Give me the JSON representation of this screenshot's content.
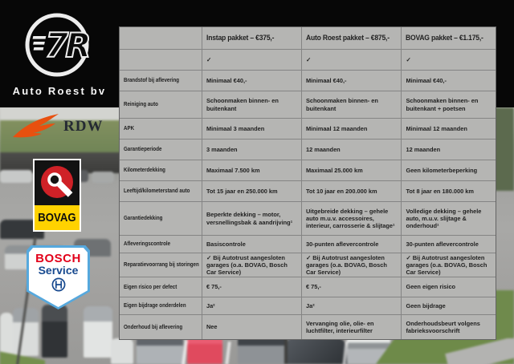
{
  "brand": {
    "name": "Auto Roest bv"
  },
  "logos": {
    "monogram": "7R",
    "rdw": "RDW",
    "bovag": "BOVAG",
    "bosch": "BOSCH",
    "bosch_service": "Service",
    "auto_roest_icon": "circle-7R-monogram",
    "rdw_icon": "orange-wing",
    "bovag_icon": "red-wheel-emblem",
    "bosch_icon": "armature-in-circle"
  },
  "colors": {
    "table_bg": "#b5b5b3",
    "rdw_orange": "#e8500f",
    "bovag_red": "#cf2127",
    "bovag_yellow": "#ffd200",
    "bosch_red": "#e2001a",
    "bosch_blue": "#17498f",
    "bosch_frame": "#56a8dd"
  },
  "table": {
    "check_symbol": "✓",
    "headers": [
      "",
      "Instap pakket – €375,-",
      "Auto Roest pakket – €875,-",
      "BOVAG pakket – €1.175,-"
    ],
    "rows": [
      {
        "label": "",
        "cells": [
          "✓",
          "✓",
          "✓"
        ]
      },
      {
        "label": "Brandstof bij aflevering",
        "cells": [
          "Minimaal €40,-",
          "Minimaal €40,-",
          "Minimaal €40,-"
        ]
      },
      {
        "label": "Reiniging auto",
        "cells": [
          "Schoonmaken binnen- en buitenkant",
          "Schoonmaken binnen- en buitenkant",
          "Schoonmaken binnen- en buitenkant + poetsen"
        ]
      },
      {
        "label": "APK",
        "cells": [
          "Minimaal 3 maanden",
          "Minimaal 12 maanden",
          "Minimaal 12 maanden"
        ]
      },
      {
        "label": "Garantieperiode",
        "cells": [
          "3 maanden",
          "12 maanden",
          "12 maanden"
        ]
      },
      {
        "label": "Kilometerdekking",
        "cells": [
          "Maximaal 7.500 km",
          "Maximaal 25.000 km",
          "Geen kilometerbeperking"
        ]
      },
      {
        "label": "Leeftijd/kilometerstand auto",
        "cells": [
          "Tot 15 jaar en 250.000 km",
          "Tot 10 jaar en 200.000 km",
          "Tot 8 jaar en 180.000 km"
        ]
      },
      {
        "label": "Garantiedekking",
        "cells": [
          "Beperkte dekking – motor, versnellingsbak & aandrijving¹",
          "Uitgebreide dekking – gehele auto m.u.v. accessoires, interieur, carrosserie & slijtage¹",
          "Volledige dekking – gehele auto, m.u.v. slijtage & onderhoud¹"
        ]
      },
      {
        "label": "Afleveringscontrole",
        "cells": [
          "Basiscontrole",
          "30-punten aflevercontrole",
          "30-punten aflevercontrole"
        ]
      },
      {
        "label": "Reparatievoorrang bij storingen",
        "cells": [
          "✓ Bij Autotrust aangesloten garages (o.a. BOVAG, Bosch Car Service)",
          "✓ Bij Autotrust aangesloten garages (o.a. BOVAG, Bosch Car Service)",
          "✓ Bij Autotrust aangesloten garages (o.a. BOVAG, Bosch Car Service)"
        ]
      },
      {
        "label": "Eigen risico per defect",
        "cells": [
          "€ 75,-",
          "€ 75,-",
          "Geen eigen risico"
        ]
      },
      {
        "label": "Eigen bijdrage onderdelen",
        "cells": [
          "Ja²",
          "Ja²",
          "Geen bijdrage"
        ]
      },
      {
        "label": "Onderhoud bij aflevering",
        "cells": [
          "Nee",
          "Vervanging olie, olie- en luchtfilter, interieurfilter",
          "Onderhoudsbeurt volgens fabrieksvoorschrift"
        ]
      }
    ]
  }
}
